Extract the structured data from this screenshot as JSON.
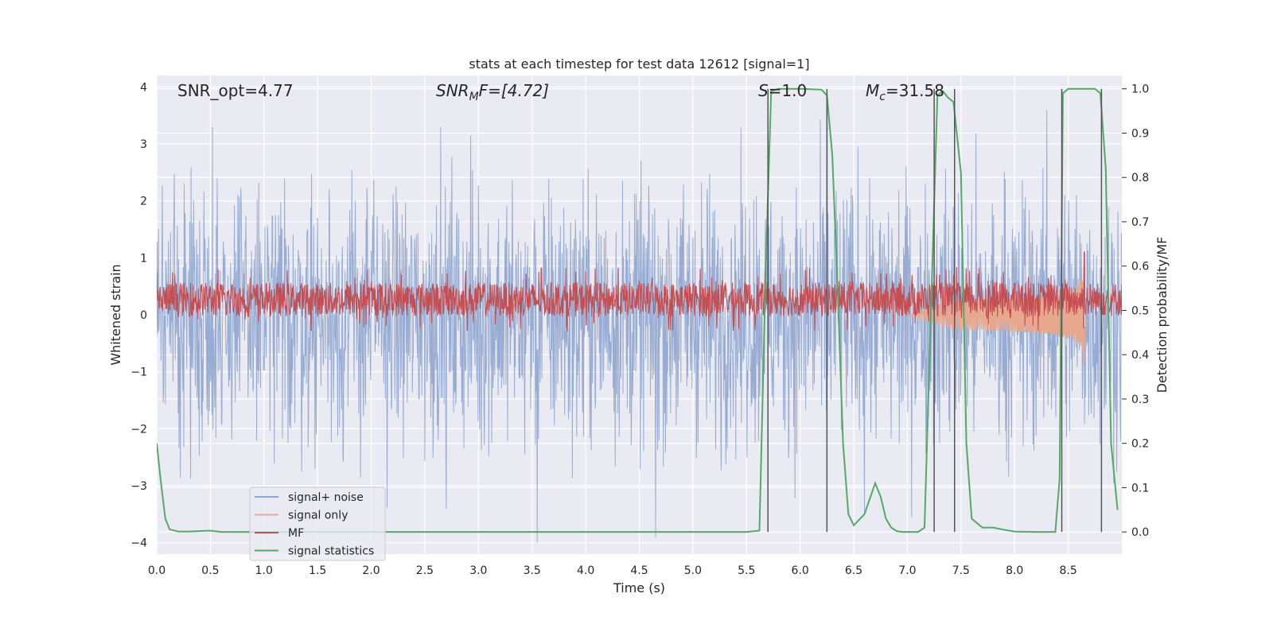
{
  "chart_data": {
    "type": "line",
    "title": "stats at each timestep for test data 12612 [signal=1]",
    "xlabel": "Time (s)",
    "ylabel_left": "Whitened strain",
    "ylabel_right": "Detection probability/MF",
    "xlim": [
      0,
      9.0
    ],
    "ylim_left": [
      -4.2,
      4.2
    ],
    "ylim_right": [
      -0.05,
      1.03
    ],
    "x_ticks": [
      0.0,
      0.5,
      1.0,
      1.5,
      2.0,
      2.5,
      3.0,
      3.5,
      4.0,
      4.5,
      5.0,
      5.5,
      6.0,
      6.5,
      7.0,
      7.5,
      8.0,
      8.5
    ],
    "x_tick_labels": [
      "0.0",
      "0.5",
      "1.0",
      "1.5",
      "2.0",
      "2.5",
      "3.0",
      "3.5",
      "4.0",
      "4.5",
      "5.0",
      "5.5",
      "6.0",
      "6.5",
      "7.0",
      "7.5",
      "8.0",
      "8.5"
    ],
    "y_left_ticks": [
      -4,
      -3,
      -2,
      -1,
      0,
      1,
      2,
      3,
      4
    ],
    "y_left_tick_labels": [
      "−4",
      "−3",
      "−2",
      "−1",
      "0",
      "1",
      "2",
      "3",
      "4"
    ],
    "y_right_ticks": [
      0.0,
      0.1,
      0.2,
      0.3,
      0.4,
      0.5,
      0.6,
      0.7,
      0.8,
      0.9,
      1.0
    ],
    "y_right_tick_labels": [
      "0.0",
      "0.1",
      "0.2",
      "0.3",
      "0.4",
      "0.5",
      "0.6",
      "0.7",
      "0.8",
      "0.9",
      "1.0"
    ],
    "grid": true,
    "legend_position": "lower-left",
    "annotations": {
      "snr_opt": "SNR_opt=4.77",
      "snr_mf_sym": "SNR",
      "snr_mf_sub": "M",
      "snr_mf_rest": "F=[4.72]",
      "s_sym": "S",
      "s_rest": "=1.0",
      "mc_sym": "M",
      "mc_sub": "c",
      "mc_rest": "=31.58"
    },
    "series": [
      {
        "name": "signal+ noise",
        "axis": "left",
        "color": "#8fa5cf",
        "style": "noise",
        "sample_step": 0.004,
        "envelope_amp": 1.9,
        "peaks": [
          {
            "x": 0.05,
            "y": 2.9
          },
          {
            "x": 0.52,
            "y": 3.3
          },
          {
            "x": 0.65,
            "y": -3.2
          },
          {
            "x": 0.85,
            "y": 3.5
          },
          {
            "x": 1.33,
            "y": 3.7
          },
          {
            "x": 1.55,
            "y": 3.3
          },
          {
            "x": 3.55,
            "y": -4.0
          },
          {
            "x": 4.65,
            "y": -3.9
          },
          {
            "x": 2.7,
            "y": -3.4
          },
          {
            "x": 6.25,
            "y": 3.3
          },
          {
            "x": 6.6,
            "y": -3.5
          },
          {
            "x": 8.3,
            "y": 3.6
          }
        ]
      },
      {
        "name": "signal only",
        "axis": "left",
        "color": "#e8a88f",
        "style": "chirp",
        "x_start": 7.0,
        "x_merger": 8.65,
        "x_end": 8.68,
        "peak_amp": 1.05
      },
      {
        "name": "MF",
        "axis": "left",
        "color": "#c44e52",
        "style": "noise-band",
        "sample_step": 0.004,
        "center": 0.27,
        "half_range": 0.3,
        "spikes": [
          {
            "x": 8.65,
            "y": 1.1
          }
        ]
      },
      {
        "name": "signal statistics",
        "axis": "right",
        "color": "#55a868",
        "x": [
          0.0,
          0.04,
          0.08,
          0.12,
          0.2,
          0.3,
          0.5,
          0.6,
          1.0,
          2.0,
          3.0,
          4.0,
          5.0,
          5.5,
          5.62,
          5.68,
          5.73,
          5.8,
          6.0,
          6.2,
          6.25,
          6.3,
          6.35,
          6.4,
          6.45,
          6.5,
          6.6,
          6.7,
          6.75,
          6.8,
          6.85,
          6.9,
          6.95,
          7.0,
          7.1,
          7.16,
          7.22,
          7.28,
          7.33,
          7.38,
          7.43,
          7.5,
          7.55,
          7.6,
          7.7,
          7.8,
          7.9,
          8.0,
          8.2,
          8.38,
          8.42,
          8.45,
          8.5,
          8.6,
          8.75,
          8.8,
          8.85,
          8.9,
          8.96
        ],
        "y": [
          0.2,
          0.11,
          0.03,
          0.006,
          0.001,
          0.001,
          0.003,
          0.0,
          0.0,
          0.0,
          0.0,
          0.0,
          0.0,
          0.0,
          0.003,
          0.6,
          0.995,
          1.0,
          1.0,
          0.998,
          0.985,
          0.85,
          0.55,
          0.2,
          0.04,
          0.015,
          0.04,
          0.11,
          0.08,
          0.03,
          0.01,
          0.002,
          0.0,
          0.0,
          0.0,
          0.01,
          0.5,
          0.985,
          0.995,
          0.98,
          0.97,
          0.81,
          0.2,
          0.03,
          0.01,
          0.01,
          0.005,
          0.001,
          0.0,
          0.0,
          0.12,
          0.99,
          1.0,
          1.0,
          1.0,
          0.99,
          0.82,
          0.2,
          0.05
        ]
      }
    ],
    "vlines": [
      5.7,
      6.25,
      7.25,
      7.44,
      8.44,
      8.81
    ],
    "vline_color": "#555555",
    "background_color": "#eaeaf2"
  }
}
